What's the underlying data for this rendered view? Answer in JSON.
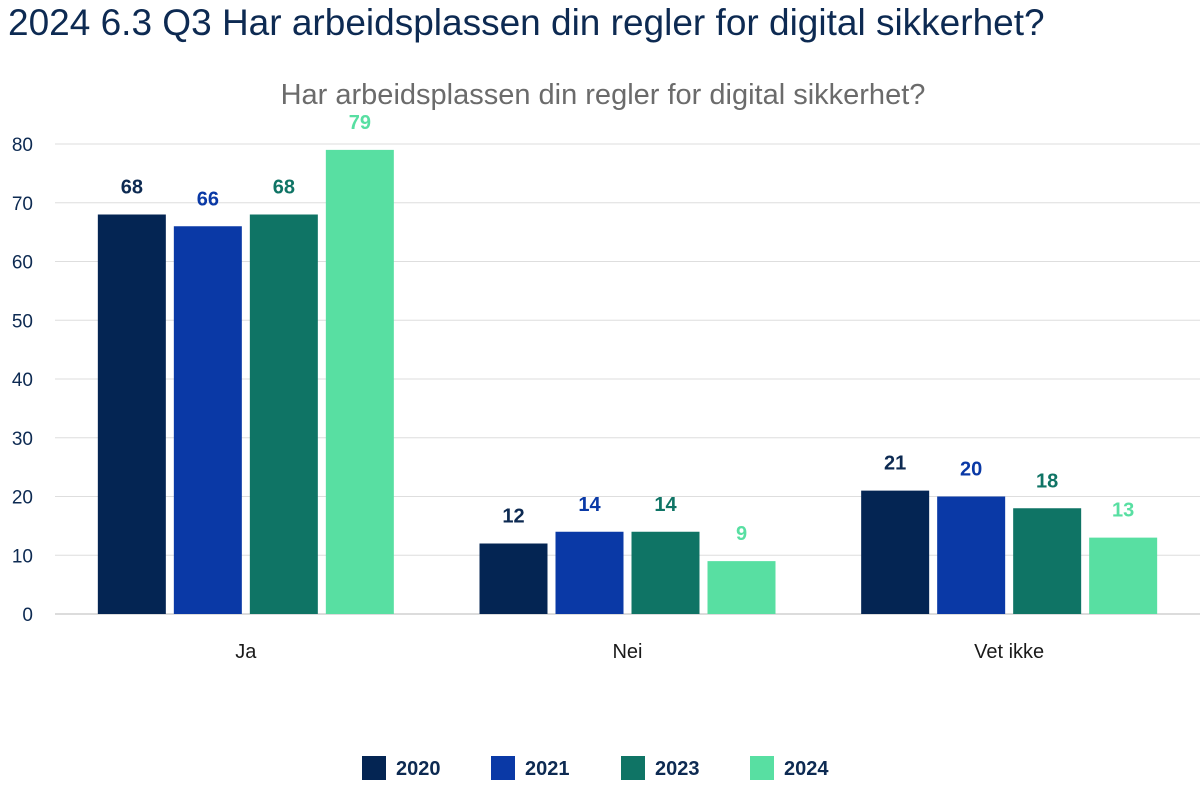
{
  "page": {
    "title": "2024 6.3 Q3 Har arbeidsplassen din regler for digital sikkerhet?"
  },
  "chart_data": {
    "type": "bar",
    "title": "Har arbeidsplassen din regler for digital sikkerhet?",
    "xlabel": "",
    "ylabel": "",
    "ylim": [
      0,
      80
    ],
    "yticks": [
      0,
      10,
      20,
      30,
      40,
      50,
      60,
      70,
      80
    ],
    "grid": true,
    "legend_position": "bottom",
    "categories": [
      "Ja",
      "Nei",
      "Vet ikke"
    ],
    "series": [
      {
        "name": "2020",
        "color": "#042553",
        "label_color": "#0d2a52",
        "values": [
          68,
          12,
          21
        ]
      },
      {
        "name": "2021",
        "color": "#0a39a6",
        "label_color": "#0a39a6",
        "values": [
          66,
          14,
          20
        ]
      },
      {
        "name": "2023",
        "color": "#0f7465",
        "label_color": "#0f7465",
        "values": [
          68,
          14,
          18
        ]
      },
      {
        "name": "2024",
        "color": "#58dfa2",
        "label_color": "#58dfa2",
        "values": [
          79,
          9,
          13
        ]
      }
    ]
  }
}
